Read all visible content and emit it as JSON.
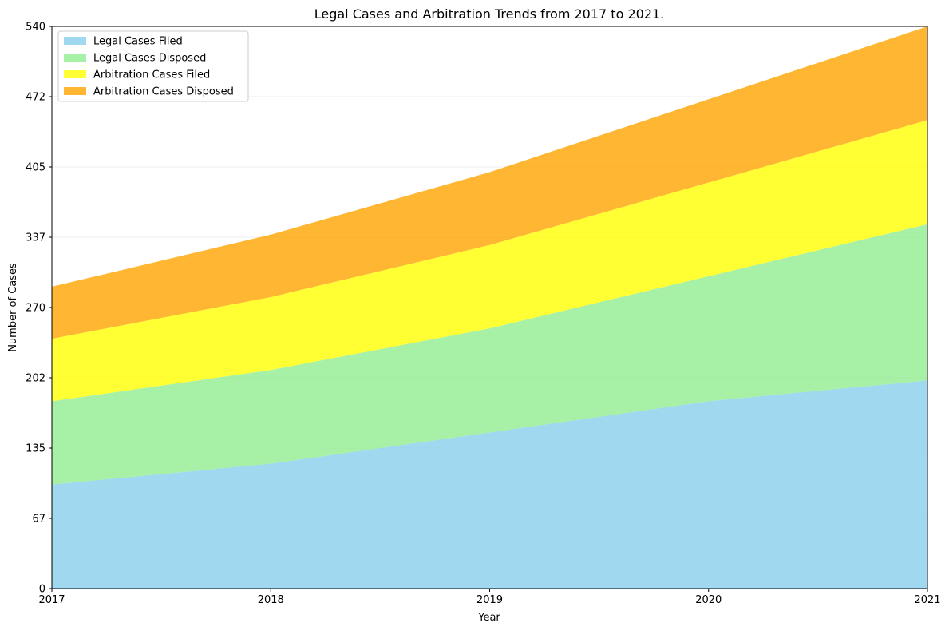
{
  "chart_data": {
    "type": "area",
    "stacked": true,
    "title": "Legal Cases and Arbitration Trends from 2017 to 2021.",
    "xlabel": "Year",
    "ylabel": "Number of Cases",
    "categories": [
      "2017",
      "2018",
      "2019",
      "2020",
      "2021"
    ],
    "ylim": [
      0,
      540
    ],
    "yticks": [
      "0",
      "67",
      "135",
      "202",
      "270",
      "337",
      "405",
      "472",
      "540"
    ],
    "ytick_values": [
      0,
      67.5,
      135,
      202.5,
      270,
      337.5,
      405,
      472.5,
      540
    ],
    "grid": "horizontal",
    "legend_position": "top-left",
    "series": [
      {
        "name": "Legal Cases Filed",
        "values": [
          100,
          120,
          150,
          180,
          200
        ],
        "color": "#87ceeb"
      },
      {
        "name": "Legal Cases Disposed",
        "values": [
          80,
          90,
          100,
          120,
          150
        ],
        "color": "#90ee90"
      },
      {
        "name": "Arbitration Cases Filed",
        "values": [
          60,
          70,
          80,
          90,
          100
        ],
        "color": "#ffff00"
      },
      {
        "name": "Arbitration Cases Disposed",
        "values": [
          50,
          60,
          70,
          80,
          90
        ],
        "color": "#ffa500"
      }
    ]
  }
}
